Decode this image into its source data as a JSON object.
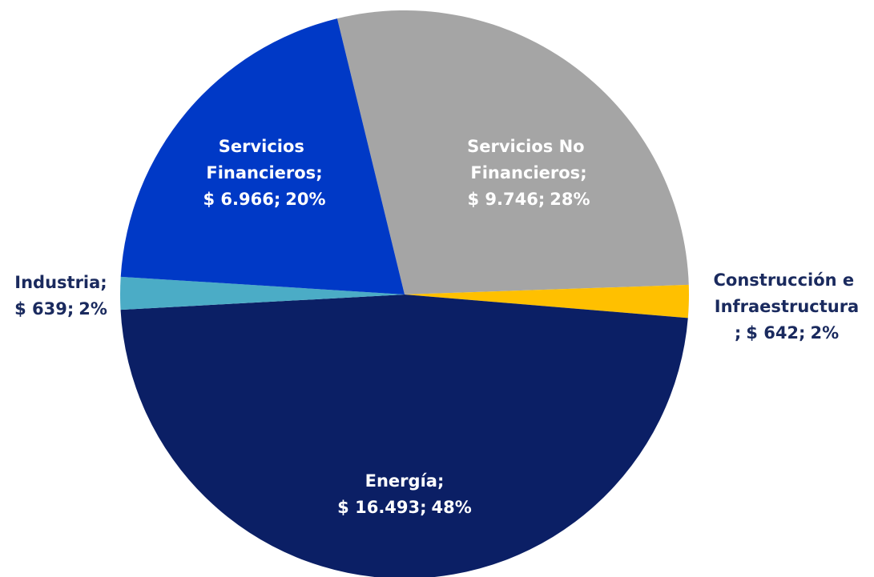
{
  "chart_data": {
    "type": "pie",
    "categories": [
      "Servicios No Financieros",
      "Construcción e Infraestructura",
      "Energía",
      "Industria",
      "Servicios Financieros"
    ],
    "values": [
      9746,
      642,
      16493,
      639,
      6966
    ],
    "value_labels": [
      "$ 9.746",
      "$ 642",
      "$ 16.493",
      "$ 639",
      "$ 6.966"
    ],
    "percent_labels": [
      "28%",
      "2%",
      "48%",
      "2%",
      "20%"
    ],
    "separator": ";",
    "colors": [
      "#a5a5a5",
      "#ffc000",
      "#0b1f65",
      "#4bacc6",
      "#0039c6"
    ]
  }
}
